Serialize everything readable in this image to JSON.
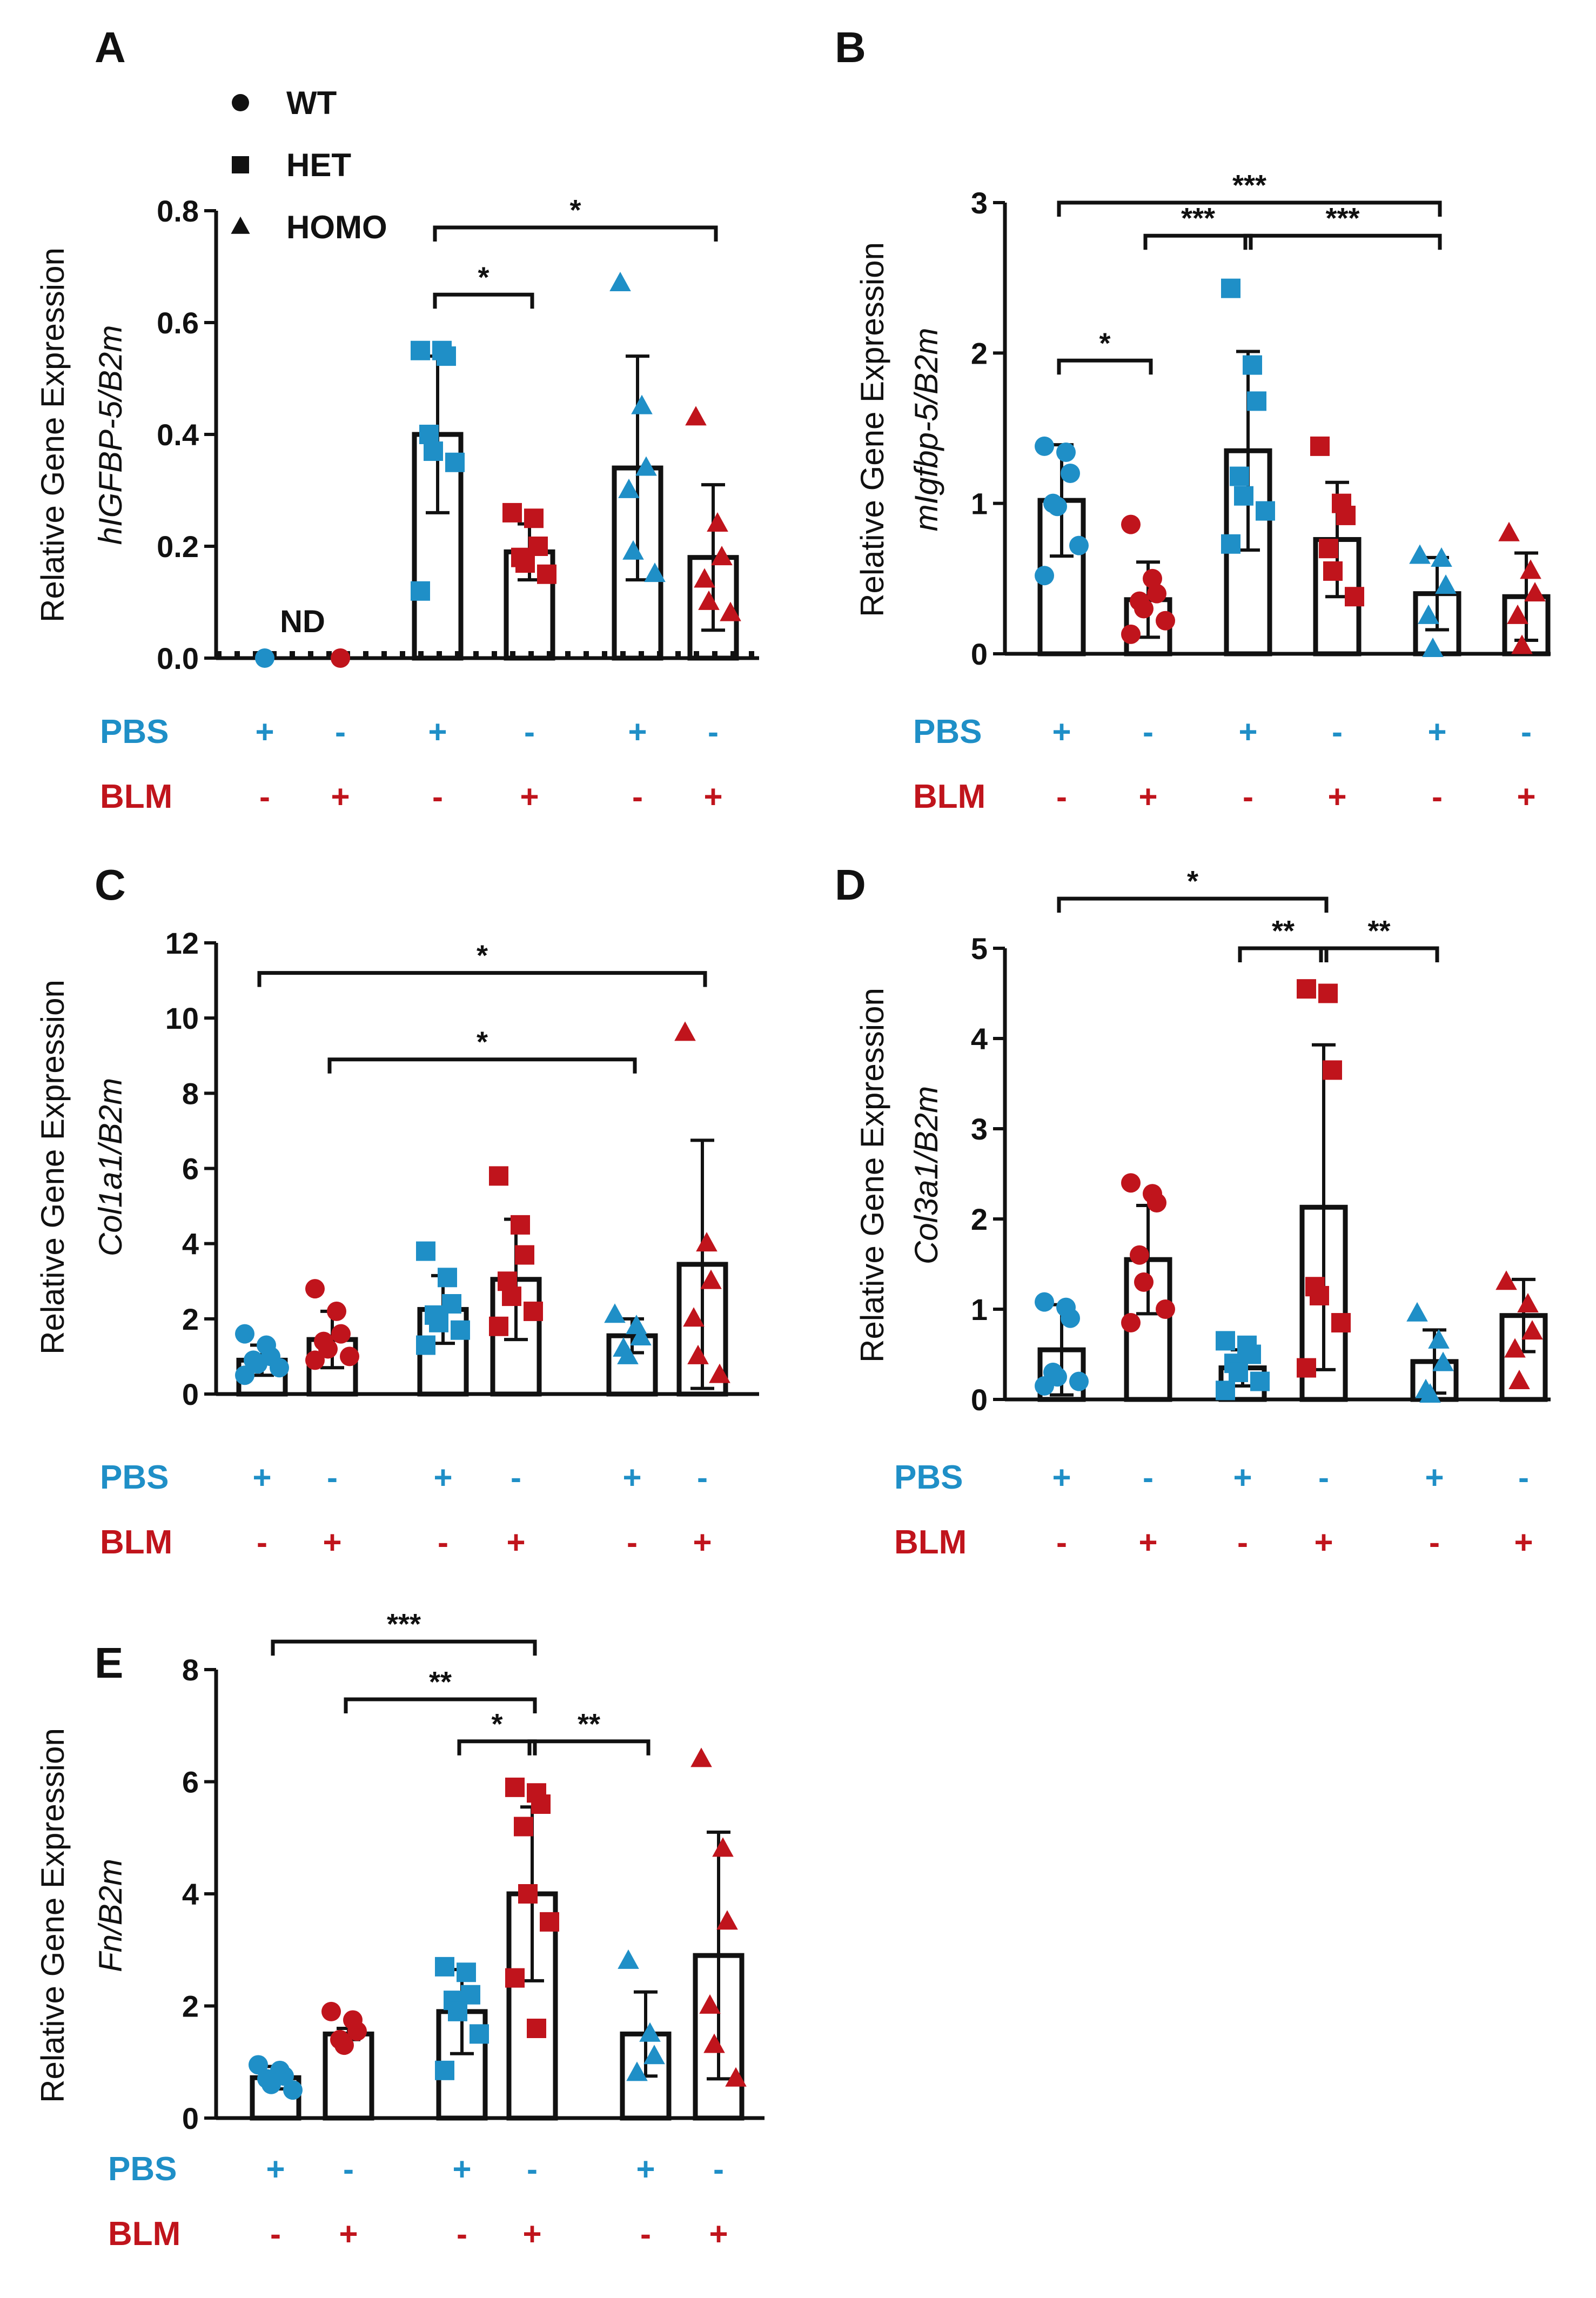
{
  "figure": {
    "row_labels": {
      "pbs": "PBS",
      "blm": "BLM"
    },
    "colors": {
      "pbs": "#1f8fc7",
      "blm": "#c0141c",
      "axis": "#111111"
    },
    "legend": [
      {
        "marker": "circle",
        "label": "WT"
      },
      {
        "marker": "square",
        "label": "HET"
      },
      {
        "marker": "triangle",
        "label": "HOMO"
      }
    ],
    "treatment": {
      "pbs": [
        "+",
        "-",
        "+",
        "-",
        "+",
        "-"
      ],
      "blm": [
        "-",
        "+",
        "-",
        "+",
        "-",
        "+"
      ]
    }
  },
  "chart_data": [
    {
      "panel": "A",
      "type": "bar",
      "title": "",
      "ylabel_line1": "Relative Gene Expression",
      "ylabel_line2": "hIGFBP-5/B2m",
      "ylim": [
        0,
        0.8
      ],
      "yticks": [
        "0.0",
        "0.2",
        "0.4",
        "0.6",
        "0.8"
      ],
      "categories": [
        "WT PBS",
        "WT BLM",
        "HET PBS",
        "HET BLM",
        "HOMO PBS",
        "HOMO BLM"
      ],
      "genotype": [
        "WT",
        "WT",
        "HET",
        "HET",
        "HOMO",
        "HOMO"
      ],
      "values": [
        0,
        0,
        0.4,
        0.19,
        0.34,
        0.18
      ],
      "sd": [
        0,
        0,
        0.14,
        0.05,
        0.2,
        0.13
      ],
      "points": [
        [
          0
        ],
        [
          0
        ],
        [
          0.55,
          0.55,
          0.54,
          0.4,
          0.37,
          0.35,
          0.12
        ],
        [
          0.26,
          0.25,
          0.2,
          0.18,
          0.17,
          0.15
        ],
        [
          0.67,
          0.45,
          0.34,
          0.3,
          0.19,
          0.15
        ],
        [
          0.43,
          0.24,
          0.18,
          0.14,
          0.1,
          0.08
        ]
      ],
      "annotation": "ND",
      "significance": [
        {
          "from": 2,
          "to": 3,
          "label": "*",
          "level": 0.65
        },
        {
          "from": 2,
          "to": 5,
          "label": "*",
          "level": 0.77
        }
      ]
    },
    {
      "panel": "B",
      "type": "bar",
      "title": "",
      "ylabel_line1": "Relative Gene Expression",
      "ylabel_line2": "mIgfbp-5/B2m",
      "ylim": [
        0,
        3
      ],
      "yticks": [
        "0",
        "1",
        "2",
        "3"
      ],
      "categories": [
        "WT PBS",
        "WT BLM",
        "HET PBS",
        "HET BLM",
        "HOMO PBS",
        "HOMO BLM"
      ],
      "genotype": [
        "WT",
        "WT",
        "HET",
        "HET",
        "HOMO",
        "HOMO"
      ],
      "values": [
        1.02,
        0.36,
        1.35,
        0.76,
        0.4,
        0.38
      ],
      "sd": [
        0.37,
        0.25,
        0.66,
        0.38,
        0.24,
        0.29
      ],
      "points": [
        [
          1.38,
          1.34,
          1.2,
          1.0,
          0.98,
          0.72,
          0.52
        ],
        [
          0.86,
          0.5,
          0.4,
          0.35,
          0.3,
          0.22,
          0.13
        ],
        [
          2.43,
          1.92,
          1.68,
          1.18,
          1.05,
          0.95,
          0.73
        ],
        [
          1.38,
          1.0,
          0.92,
          0.7,
          0.55,
          0.38
        ],
        [
          0.65,
          0.63,
          0.45,
          0.25,
          0.03
        ],
        [
          0.8,
          0.55,
          0.4,
          0.25,
          0.05
        ]
      ],
      "significance": [
        {
          "from": 0,
          "to": 1,
          "label": "*",
          "level": 1.95
        },
        {
          "from": 1,
          "to": 2,
          "label": "***",
          "level": 2.78
        },
        {
          "from": 2,
          "to": 4,
          "label": "***",
          "level": 2.78
        },
        {
          "from": 0,
          "to": 4,
          "label": "***",
          "level": 3.0
        }
      ]
    },
    {
      "panel": "C",
      "type": "bar",
      "title": "",
      "ylabel_line1": "Relative Gene Expression",
      "ylabel_line2": "Col1a1/B2m",
      "ylim": [
        0,
        12
      ],
      "yticks": [
        "0",
        "2",
        "4",
        "6",
        "8",
        "10",
        "12"
      ],
      "categories": [
        "WT PBS",
        "WT BLM",
        "HET PBS",
        "HET BLM",
        "HOMO PBS",
        "HOMO BLM"
      ],
      "genotype": [
        "WT",
        "WT",
        "HET",
        "HET",
        "HOMO",
        "HOMO"
      ],
      "values": [
        0.9,
        1.45,
        2.25,
        3.05,
        1.55,
        3.45
      ],
      "sd": [
        0.4,
        0.75,
        0.9,
        1.6,
        0.45,
        3.3
      ],
      "points": [
        [
          1.6,
          1.3,
          1.0,
          0.9,
          0.8,
          0.7,
          0.5
        ],
        [
          2.8,
          2.2,
          1.6,
          1.4,
          1.2,
          1.0,
          0.9
        ],
        [
          3.8,
          3.1,
          2.4,
          2.1,
          1.9,
          1.7,
          1.3
        ],
        [
          5.8,
          4.5,
          3.7,
          3.0,
          2.6,
          2.2,
          1.8
        ],
        [
          2.1,
          1.8,
          1.5,
          1.2,
          1.0
        ],
        [
          9.6,
          4.0,
          3.0,
          2.0,
          1.0,
          0.5
        ]
      ],
      "significance": [
        {
          "from": 1,
          "to": 4,
          "label": "*",
          "level": 8.9
        },
        {
          "from": 0,
          "to": 5,
          "label": "*",
          "level": 11.2
        }
      ]
    },
    {
      "panel": "D",
      "type": "bar",
      "title": "",
      "ylabel_line1": "Relative Gene Expression",
      "ylabel_line2": "Col3a1/B2m",
      "ylim": [
        0,
        5
      ],
      "yticks": [
        "0",
        "1",
        "2",
        "3",
        "4",
        "5"
      ],
      "categories": [
        "WT PBS",
        "WT BLM",
        "HET PBS",
        "HET BLM",
        "HOMO PBS",
        "HOMO BLM"
      ],
      "genotype": [
        "WT",
        "WT",
        "HET",
        "HET",
        "HOMO",
        "HOMO"
      ],
      "values": [
        0.55,
        1.55,
        0.35,
        2.13,
        0.42,
        0.93
      ],
      "sd": [
        0.5,
        0.6,
        0.2,
        1.8,
        0.35,
        0.4
      ],
      "points": [
        [
          1.08,
          1.02,
          0.9,
          0.3,
          0.25,
          0.2,
          0.15
        ],
        [
          2.4,
          2.28,
          2.18,
          1.6,
          1.3,
          1.0,
          0.85
        ],
        [
          0.65,
          0.6,
          0.5,
          0.4,
          0.3,
          0.2,
          0.1
        ],
        [
          4.55,
          4.5,
          3.65,
          1.25,
          1.15,
          0.85,
          0.35
        ],
        [
          0.95,
          0.65,
          0.4,
          0.1,
          0.05
        ],
        [
          1.3,
          1.05,
          0.75,
          0.55,
          0.2
        ]
      ],
      "significance": [
        {
          "from": 3,
          "to": 4,
          "label": "**",
          "level": 5.0
        },
        {
          "from": 2,
          "to": 3,
          "label": "**",
          "level": 5.0
        },
        {
          "from": 0,
          "to": 3,
          "label": "*",
          "level": 5.55
        }
      ]
    },
    {
      "panel": "E",
      "type": "bar",
      "title": "",
      "ylabel_line1": "Relative Gene Expression",
      "ylabel_line2": "Fn/B2m",
      "ylim": [
        0,
        8
      ],
      "yticks": [
        "0",
        "2",
        "4",
        "6",
        "8"
      ],
      "categories": [
        "WT PBS",
        "WT BLM",
        "HET PBS",
        "HET BLM",
        "HOMO PBS",
        "HOMO BLM"
      ],
      "genotype": [
        "WT",
        "WT",
        "HET",
        "HET",
        "HOMO",
        "HOMO"
      ],
      "values": [
        0.72,
        1.5,
        1.9,
        4.0,
        1.5,
        2.9
      ],
      "sd": [
        0.2,
        0.1,
        0.75,
        1.55,
        0.75,
        2.2
      ],
      "points": [
        [
          0.95,
          0.85,
          0.75,
          0.7,
          0.6,
          0.5
        ],
        [
          1.9,
          1.75,
          1.55,
          1.4,
          1.3
        ],
        [
          2.7,
          2.6,
          2.2,
          2.1,
          1.9,
          1.5,
          0.85
        ],
        [
          5.9,
          5.8,
          5.6,
          5.2,
          4.0,
          3.5,
          2.5,
          1.6
        ],
        [
          2.8,
          1.5,
          1.1,
          0.8
        ],
        [
          6.4,
          4.8,
          3.5,
          2.0,
          1.3,
          0.7
        ]
      ],
      "significance": [
        {
          "from": 3,
          "to": 4,
          "label": "**",
          "level": 6.72
        },
        {
          "from": 2,
          "to": 3,
          "label": "*",
          "level": 6.72
        },
        {
          "from": 1,
          "to": 3,
          "label": "**",
          "level": 7.47
        },
        {
          "from": 0,
          "to": 3,
          "label": "***",
          "level": 8.5
        }
      ]
    }
  ]
}
